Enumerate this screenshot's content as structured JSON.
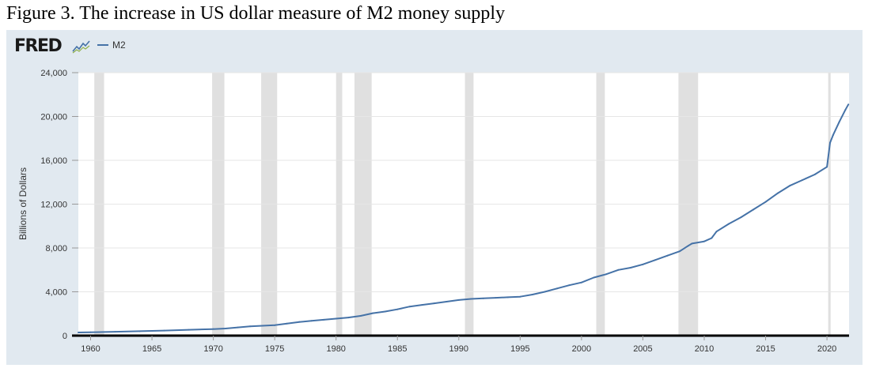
{
  "figure_title": "Figure 3. The increase in US dollar measure of M2 money supply",
  "logo": {
    "text": "FRED",
    "icon": "chart-line-icon"
  },
  "colors": {
    "series": "#4572a7",
    "panel": "#e1e9f0",
    "recession": "#e0e0e0",
    "grid": "#e6e6e6"
  },
  "chart_data": {
    "type": "line",
    "title": "",
    "xlabel": "",
    "ylabel": "Billions of Dollars",
    "xlim": [
      1959,
      2021.8
    ],
    "ylim": [
      0,
      24000
    ],
    "yticks": [
      0,
      4000,
      8000,
      12000,
      16000,
      20000,
      24000
    ],
    "ytick_labels": [
      "0",
      "4,000",
      "8,000",
      "12,000",
      "16,000",
      "20,000",
      "24,000"
    ],
    "xticks": [
      1960,
      1965,
      1970,
      1975,
      1980,
      1985,
      1990,
      1995,
      2000,
      2005,
      2010,
      2015,
      2020
    ],
    "xtick_labels": [
      "1960",
      "1965",
      "1970",
      "1975",
      "1980",
      "1985",
      "1990",
      "1995",
      "2000",
      "2005",
      "2010",
      "2015",
      "2020"
    ],
    "legend": "top-left",
    "recessions": [
      [
        1960.3,
        1961.1
      ],
      [
        1969.9,
        1970.9
      ],
      [
        1973.9,
        1975.2
      ],
      [
        1980.0,
        1980.5
      ],
      [
        1981.5,
        1982.9
      ],
      [
        1990.5,
        1991.2
      ],
      [
        2001.2,
        2001.9
      ],
      [
        2007.9,
        2009.5
      ],
      [
        2020.1,
        2020.3
      ]
    ],
    "series": [
      {
        "name": "M2",
        "x": [
          1959.0,
          1960.0,
          1962.0,
          1964.0,
          1966.0,
          1968.0,
          1970.0,
          1971.0,
          1972.0,
          1973.0,
          1974.0,
          1975.0,
          1976.0,
          1977.0,
          1978.0,
          1979.0,
          1980.0,
          1981.0,
          1982.0,
          1983.0,
          1984.0,
          1985.0,
          1986.0,
          1987.0,
          1988.0,
          1989.0,
          1990.0,
          1991.0,
          1992.0,
          1993.0,
          1994.0,
          1995.0,
          1996.0,
          1997.0,
          1998.0,
          1999.0,
          2000.0,
          2001.0,
          2002.0,
          2003.0,
          2004.0,
          2005.0,
          2006.0,
          2007.0,
          2008.0,
          2008.7,
          2009.0,
          2010.0,
          2010.6,
          2011.0,
          2012.0,
          2013.0,
          2014.0,
          2015.0,
          2016.0,
          2017.0,
          2018.0,
          2019.0,
          2020.0,
          2020.25,
          2020.5,
          2021.0,
          2021.5,
          2021.75
        ],
        "values": [
          290,
          305,
          350,
          400,
          460,
          530,
          600,
          650,
          750,
          850,
          900,
          950,
          1100,
          1250,
          1350,
          1450,
          1550,
          1650,
          1800,
          2050,
          2200,
          2400,
          2650,
          2800,
          2950,
          3100,
          3250,
          3350,
          3400,
          3450,
          3500,
          3550,
          3750,
          4000,
          4300,
          4600,
          4850,
          5300,
          5600,
          6000,
          6200,
          6500,
          6900,
          7300,
          7700,
          8200,
          8400,
          8600,
          8900,
          9500,
          10200,
          10800,
          11500,
          12200,
          13000,
          13700,
          14200,
          14700,
          15400,
          17600,
          18300,
          19500,
          20600,
          21100
        ]
      }
    ]
  }
}
